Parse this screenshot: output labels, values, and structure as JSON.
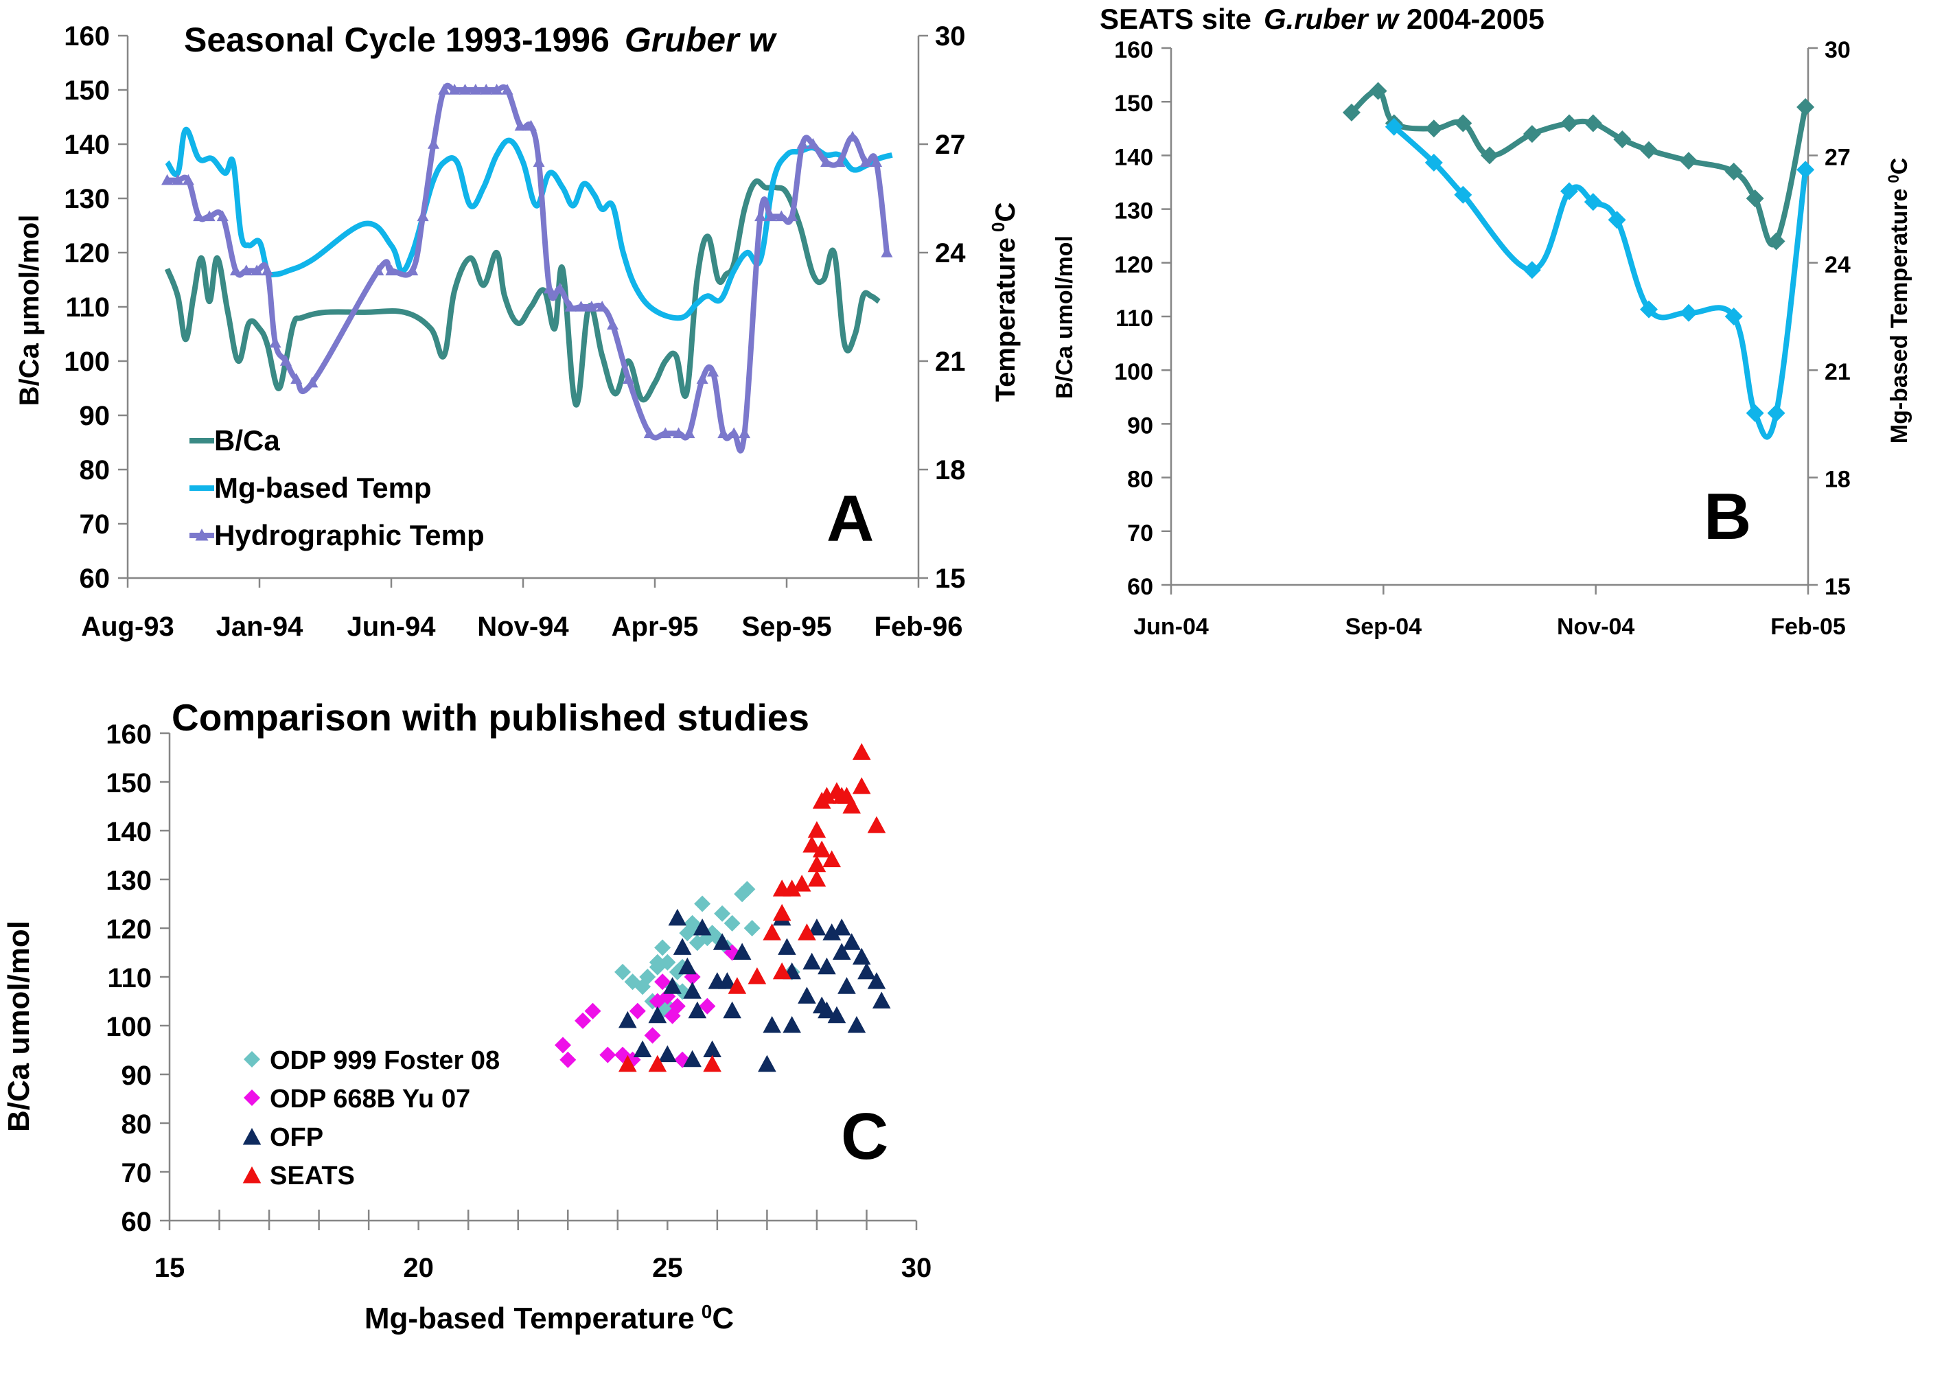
{
  "figure": "B/Ca and temperature panels",
  "colors": {
    "bca": "#3a8a85",
    "mg": "#10b4ea",
    "hydro": "#7b78cc",
    "odp999": "#6cc4c4",
    "odp668": "#ee10e8",
    "ofp": "#0e2a5e",
    "seats": "#ee1010"
  },
  "chart_data": [
    {
      "panel": "A",
      "type": "line",
      "title": "Seasonal Cycle 1993-1996",
      "title_italic": "Gruber w",
      "ylabel": "B/Ca µmol/mol",
      "y2label": "Temperature",
      "y2label_unit": "0C",
      "ylim": [
        60,
        160
      ],
      "y2lim": [
        15,
        30
      ],
      "yticks": [
        "60",
        "70",
        "80",
        "90",
        "100",
        "110",
        "120",
        "130",
        "140",
        "150",
        "160"
      ],
      "y2ticks": [
        "15",
        "18",
        "21",
        "24",
        "27",
        "30"
      ],
      "xticks": [
        "Aug-93",
        "Jan-94",
        "Jun-94",
        "Nov-94",
        "Apr-95",
        "Sep-95",
        "Feb-96"
      ],
      "xlim": [
        0,
        30
      ],
      "legend": [
        "B/Ca",
        "Mg-based Temp",
        "Hydrographic Temp"
      ],
      "series": [
        {
          "name": "B/Ca",
          "axis": "left",
          "x": [
            1.5,
            1.9,
            2.2,
            2.5,
            2.8,
            3.1,
            3.4,
            3.8,
            4.2,
            4.6,
            5.0,
            5.3,
            5.7,
            6.0,
            6.3,
            6.6,
            7.5,
            9,
            10.5,
            11.5,
            12.0,
            12.4,
            13.0,
            13.5,
            14.0,
            14.3,
            14.8,
            15.3,
            15.8,
            16.2,
            16.5,
            17.0,
            17.5,
            18.0,
            18.5,
            19.0,
            19.5,
            20.0,
            20.4,
            20.8,
            21.2,
            21.6,
            22.0,
            22.4,
            22.7,
            23.0,
            23.4,
            23.8,
            24.2,
            24.6,
            25.0,
            25.5,
            26.0,
            26.4,
            26.8,
            27.2,
            27.6,
            27.9,
            28.2,
            28.5
          ],
          "values": [
            117,
            112,
            104,
            112,
            119,
            111,
            119,
            109,
            100,
            107,
            106,
            103,
            95,
            100,
            107,
            108,
            109,
            109,
            109,
            106,
            101,
            113,
            119,
            114,
            120,
            112,
            107,
            110,
            113,
            106,
            117,
            92,
            110,
            101,
            94,
            100,
            93,
            96,
            100,
            101,
            94,
            115,
            123,
            115,
            116,
            118,
            128,
            133,
            132,
            132,
            131,
            125,
            116,
            115,
            120,
            103,
            105,
            112,
            112,
            111
          ]
        },
        {
          "name": "Mg-based Temp",
          "axis": "right",
          "x": [
            1.5,
            1.9,
            2.2,
            2.7,
            3.2,
            3.7,
            4.0,
            4.3,
            4.6,
            5.0,
            5.3,
            5.6,
            6.1,
            7.0,
            9.0,
            10.0,
            10.4,
            10.8,
            11.2,
            11.6,
            12.0,
            12.5,
            13.0,
            13.5,
            14.0,
            14.5,
            15.0,
            15.5,
            16.0,
            16.5,
            16.9,
            17.3,
            17.7,
            18.0,
            18.4,
            18.8,
            19.3,
            20.0,
            21.0,
            21.6,
            22.0,
            22.5,
            23.0,
            23.5,
            24.0,
            24.5,
            25.0,
            25.5,
            26.0,
            26.5,
            27.0,
            27.5,
            28.0,
            28.5,
            29.0
          ],
          "values": [
            26.5,
            26.2,
            27.4,
            26.6,
            26.6,
            26.2,
            26.5,
            24.5,
            24.2,
            24.3,
            23.5,
            23.4,
            23.5,
            23.8,
            24.8,
            24.2,
            23.5,
            24.0,
            25.0,
            26.0,
            26.5,
            26.5,
            25.3,
            25.8,
            26.7,
            27.1,
            26.5,
            25.3,
            26.2,
            25.8,
            25.3,
            25.9,
            25.6,
            25.2,
            25.3,
            24.0,
            23.0,
            22.4,
            22.2,
            22.6,
            22.8,
            22.7,
            23.5,
            24.0,
            23.8,
            26.0,
            26.7,
            26.8,
            26.9,
            26.7,
            26.7,
            26.3,
            26.4,
            26.6,
            26.7
          ]
        },
        {
          "name": "Hydrographic Temp",
          "axis": "right",
          "x": [
            1.5,
            1.9,
            2.3,
            2.7,
            3.1,
            3.6,
            4.1,
            4.5,
            4.9,
            5.3,
            5.6,
            6.0,
            6.4,
            7.0,
            9.5,
            10.0,
            10.8,
            11.2,
            11.6,
            12.0,
            12.4,
            12.8,
            13.2,
            13.6,
            14.0,
            14.4,
            14.9,
            15.3,
            15.6,
            16.0,
            16.4,
            16.8,
            17.2,
            17.6,
            18.0,
            18.4,
            19.0,
            19.8,
            20.4,
            20.9,
            21.3,
            21.8,
            22.2,
            22.6,
            23.0,
            23.4,
            24.0,
            24.4,
            24.8,
            25.2,
            25.6,
            26.0,
            26.5,
            27.0,
            27.5,
            28.0,
            28.4,
            28.8
          ],
          "values": [
            26.0,
            26.0,
            26.0,
            25.0,
            25.0,
            25.0,
            23.5,
            23.5,
            23.5,
            23.5,
            21.5,
            21.0,
            20.5,
            20.4,
            23.5,
            23.5,
            23.5,
            25.0,
            27.0,
            28.5,
            28.5,
            28.5,
            28.5,
            28.5,
            28.5,
            28.5,
            27.5,
            27.5,
            26.5,
            23.0,
            23.0,
            22.5,
            22.5,
            22.5,
            22.5,
            22.0,
            20.5,
            19.0,
            19.0,
            19.0,
            19.0,
            20.5,
            20.7,
            19.0,
            19.0,
            19.0,
            25.0,
            25.0,
            25.0,
            25.0,
            27.0,
            27.0,
            26.5,
            26.5,
            27.2,
            26.5,
            26.5,
            24.0
          ]
        }
      ],
      "panel_label": "A"
    },
    {
      "panel": "B",
      "type": "line",
      "title": "SEATS site",
      "title_italic": "G.ruber w",
      "title_suffix": "2004-2005",
      "ylabel": "B/Ca umol/mol",
      "y2label": "Mg-based Temperature",
      "y2label_unit": "0C",
      "ylim": [
        60,
        160
      ],
      "y2lim": [
        15,
        30
      ],
      "yticks": [
        "60",
        "70",
        "80",
        "90",
        "100",
        "110",
        "120",
        "130",
        "140",
        "150",
        "160"
      ],
      "y2ticks": [
        "15",
        "18",
        "21",
        "24",
        "27",
        "30"
      ],
      "xticks": [
        "Jun-04",
        "Sep-04",
        "Nov-04",
        "Feb-05"
      ],
      "xlim": [
        0,
        24
      ],
      "series": [
        {
          "name": "B/Ca",
          "axis": "left",
          "x": [
            6.8,
            7.8,
            8.4,
            9.9,
            11.0,
            12.0,
            13.6,
            15.0,
            15.9,
            17.0,
            18.0,
            19.5,
            21.2,
            22.0,
            22.8,
            23.9
          ],
          "values": [
            148,
            152,
            146,
            145,
            146,
            140,
            144,
            146,
            146,
            143,
            141,
            139,
            137,
            132,
            124,
            149
          ]
        },
        {
          "name": "Mg-based Temp",
          "axis": "right",
          "x": [
            8.4,
            9.9,
            11.0,
            13.6,
            15.0,
            15.9,
            16.8,
            18.0,
            19.5,
            21.2,
            22.0,
            22.8,
            23.9
          ],
          "values": [
            27.8,
            26.8,
            25.9,
            23.8,
            26.0,
            25.7,
            25.2,
            22.7,
            22.6,
            22.5,
            19.8,
            19.8,
            26.6
          ]
        }
      ],
      "panel_label": "B"
    },
    {
      "panel": "C",
      "type": "scatter",
      "title": "Comparison with published studies",
      "xlabel": "Mg-based Temperature",
      "xlabel_unit": "0C",
      "ylabel": "B/Ca umol/mol",
      "xlim": [
        15,
        30
      ],
      "ylim": [
        60,
        160
      ],
      "xticks": [
        "15",
        "20",
        "25",
        "30"
      ],
      "yticks": [
        "60",
        "70",
        "80",
        "90",
        "100",
        "110",
        "120",
        "130",
        "140",
        "150",
        "160"
      ],
      "series": [
        {
          "name": "ODP 999 Foster 08",
          "marker": "diamond",
          "points": [
            [
              24.1,
              111
            ],
            [
              24.3,
              109
            ],
            [
              24.5,
              108
            ],
            [
              24.6,
              110
            ],
            [
              24.7,
              105
            ],
            [
              24.8,
              112
            ],
            [
              24.9,
              116
            ],
            [
              25.0,
              113
            ],
            [
              24.9,
              103
            ],
            [
              25.1,
              108
            ],
            [
              25.2,
              111
            ],
            [
              25.3,
              112
            ],
            [
              25.4,
              119
            ],
            [
              25.5,
              121
            ],
            [
              25.6,
              117
            ],
            [
              25.7,
              125
            ],
            [
              25.8,
              118
            ],
            [
              25.9,
              119
            ],
            [
              26.0,
              118
            ],
            [
              26.1,
              123
            ],
            [
              26.3,
              121
            ],
            [
              26.5,
              127
            ],
            [
              26.6,
              128
            ],
            [
              26.7,
              120
            ],
            [
              27.5,
              111
            ],
            [
              25.0,
              104
            ],
            [
              25.3,
              107
            ],
            [
              25.6,
              120
            ],
            [
              26.2,
              116
            ],
            [
              24.8,
              113
            ]
          ]
        },
        {
          "name": "ODP 668B Yu 07",
          "marker": "diamond",
          "points": [
            [
              22.9,
              96
            ],
            [
              23.0,
              93
            ],
            [
              23.3,
              101
            ],
            [
              23.5,
              103
            ],
            [
              23.8,
              94
            ],
            [
              24.1,
              94
            ],
            [
              24.3,
              93
            ],
            [
              24.4,
              103
            ],
            [
              24.7,
              98
            ],
            [
              24.9,
              109
            ],
            [
              25.0,
              106
            ],
            [
              25.2,
              104
            ],
            [
              25.3,
              93
            ],
            [
              25.5,
              110
            ],
            [
              25.8,
              104
            ],
            [
              26.3,
              115
            ],
            [
              24.8,
              105
            ],
            [
              25.1,
              102
            ]
          ]
        },
        {
          "name": "OFP",
          "marker": "triangle",
          "points": [
            [
              24.2,
              101
            ],
            [
              24.5,
              95
            ],
            [
              24.8,
              102
            ],
            [
              25.0,
              94
            ],
            [
              25.1,
              108
            ],
            [
              25.2,
              122
            ],
            [
              25.3,
              116
            ],
            [
              25.4,
              112
            ],
            [
              25.5,
              107
            ],
            [
              25.6,
              103
            ],
            [
              25.7,
              120
            ],
            [
              25.9,
              95
            ],
            [
              26.0,
              109
            ],
            [
              26.1,
              117
            ],
            [
              26.2,
              109
            ],
            [
              26.3,
              103
            ],
            [
              26.5,
              115
            ],
            [
              25.5,
              93
            ],
            [
              27.0,
              92
            ],
            [
              27.1,
              100
            ],
            [
              27.3,
              122
            ],
            [
              27.4,
              116
            ],
            [
              27.5,
              111
            ],
            [
              27.5,
              100
            ],
            [
              27.8,
              106
            ],
            [
              27.9,
              113
            ],
            [
              28.0,
              120
            ],
            [
              28.1,
              104
            ],
            [
              28.2,
              112
            ],
            [
              28.3,
              119
            ],
            [
              28.4,
              102
            ],
            [
              28.5,
              115
            ],
            [
              28.5,
              120
            ],
            [
              28.6,
              108
            ],
            [
              28.7,
              117
            ],
            [
              28.8,
              100
            ],
            [
              28.9,
              114
            ],
            [
              29.0,
              111
            ],
            [
              29.2,
              109
            ],
            [
              29.3,
              105
            ],
            [
              28.2,
              103
            ]
          ]
        },
        {
          "name": "SEATS",
          "marker": "triangle",
          "points": [
            [
              24.2,
              92
            ],
            [
              24.8,
              92
            ],
            [
              25.9,
              92
            ],
            [
              26.4,
              108
            ],
            [
              26.8,
              110
            ],
            [
              27.1,
              119
            ],
            [
              27.3,
              111
            ],
            [
              27.3,
              123
            ],
            [
              27.5,
              128
            ],
            [
              27.7,
              129
            ],
            [
              27.8,
              119
            ],
            [
              27.9,
              137
            ],
            [
              28.0,
              140
            ],
            [
              28.0,
              133
            ],
            [
              28.1,
              146
            ],
            [
              28.1,
              136
            ],
            [
              28.2,
              147
            ],
            [
              28.3,
              134
            ],
            [
              28.4,
              148
            ],
            [
              28.6,
              147
            ],
            [
              28.7,
              145
            ],
            [
              28.9,
              156
            ],
            [
              28.9,
              149
            ],
            [
              29.2,
              141
            ],
            [
              27.3,
              128
            ],
            [
              28.0,
              130
            ],
            [
              28.5,
              147
            ]
          ]
        }
      ],
      "legend": [
        "ODP 999 Foster 08",
        "ODP 668B Yu 07",
        "OFP",
        "SEATS"
      ],
      "panel_label": "C"
    }
  ]
}
